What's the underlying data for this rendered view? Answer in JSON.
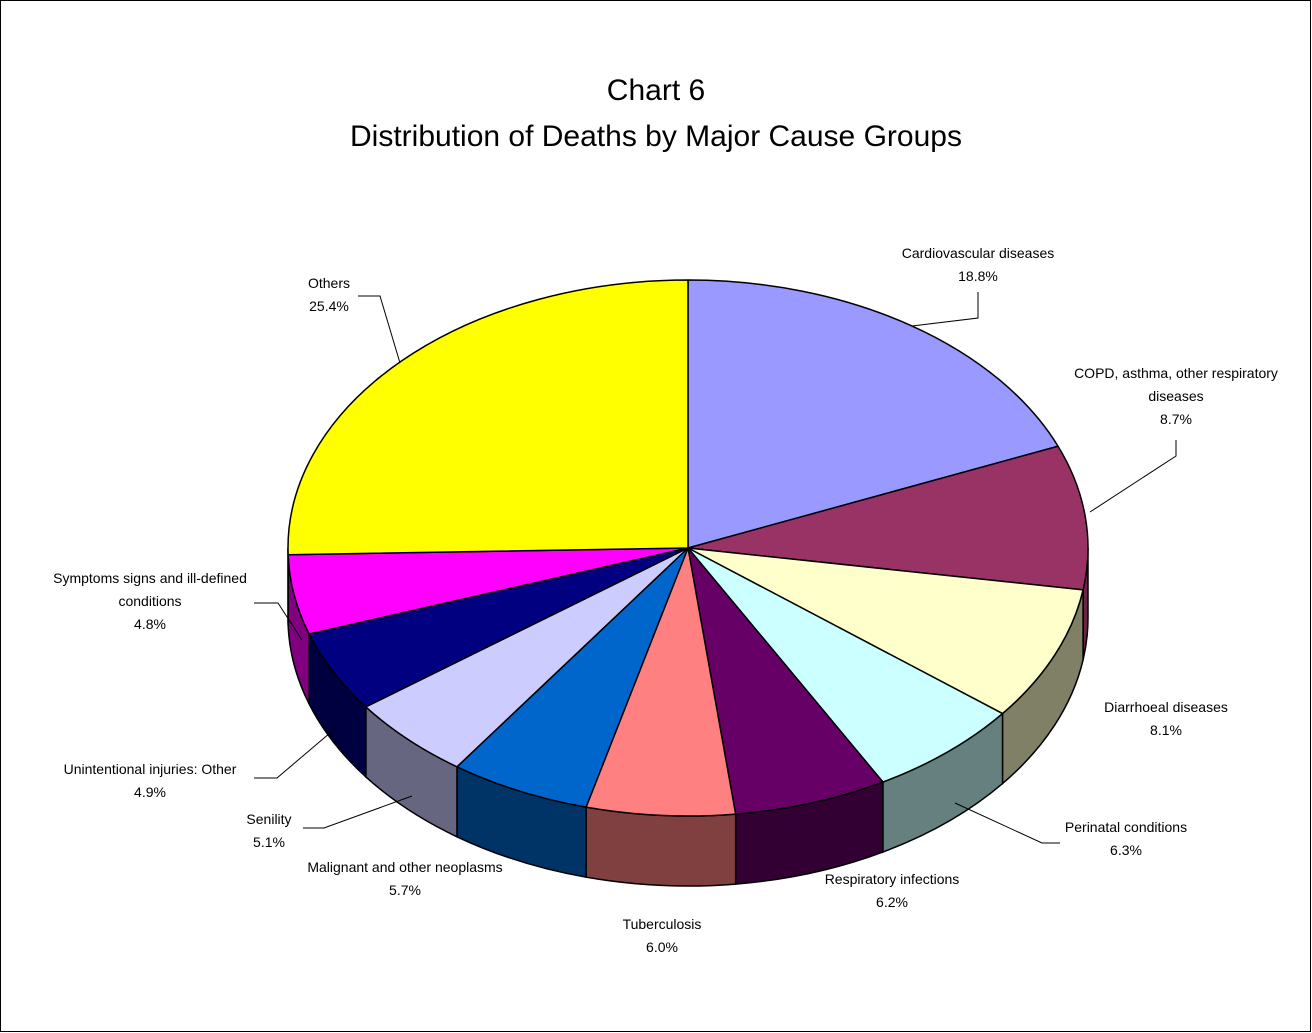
{
  "chart_data": {
    "type": "pie",
    "title_lines": [
      "Chart 6",
      "Distribution of  Deaths by Major Cause Groups"
    ],
    "slices": [
      {
        "label_lines": [
          "Cardiovascular diseases"
        ],
        "pct_label": "18.8%",
        "value": 18.8,
        "color": "#9999ff",
        "side": "#6b6bb3"
      },
      {
        "label_lines": [
          "COPD, asthma, other respiratory",
          "diseases"
        ],
        "pct_label": "8.7%",
        "value": 8.7,
        "color": "#993366",
        "side": "#6b2447"
      },
      {
        "label_lines": [
          "Diarrhoeal diseases"
        ],
        "pct_label": "8.1%",
        "value": 8.1,
        "color": "#ffffcc",
        "side": "#808066"
      },
      {
        "label_lines": [
          "Perinatal conditions"
        ],
        "pct_label": "6.3%",
        "value": 6.3,
        "color": "#ccffff",
        "side": "#668080"
      },
      {
        "label_lines": [
          "Respiratory infections"
        ],
        "pct_label": "6.2%",
        "value": 6.2,
        "color": "#660066",
        "side": "#330033"
      },
      {
        "label_lines": [
          "Tuberculosis"
        ],
        "pct_label": "6.0%",
        "value": 6.0,
        "color": "#ff8080",
        "side": "#804040"
      },
      {
        "label_lines": [
          "Malignant and other neoplasms"
        ],
        "pct_label": "5.7%",
        "value": 5.7,
        "color": "#0066cc",
        "side": "#003366"
      },
      {
        "label_lines": [
          "Senility"
        ],
        "pct_label": "5.1%",
        "value": 5.1,
        "color": "#ccccff",
        "side": "#666680"
      },
      {
        "label_lines": [
          "Unintentional injuries: Other"
        ],
        "pct_label": "4.9%",
        "value": 4.9,
        "color": "#000080",
        "side": "#000040"
      },
      {
        "label_lines": [
          "Symptoms signs and ill-defined",
          "conditions"
        ],
        "pct_label": "4.8%",
        "value": 4.8,
        "color": "#ff00ff",
        "side": "#800080"
      },
      {
        "label_lines": [
          "Others"
        ],
        "pct_label": "25.4%",
        "value": 25.4,
        "color": "#ffff00",
        "side": "#808000"
      }
    ]
  }
}
